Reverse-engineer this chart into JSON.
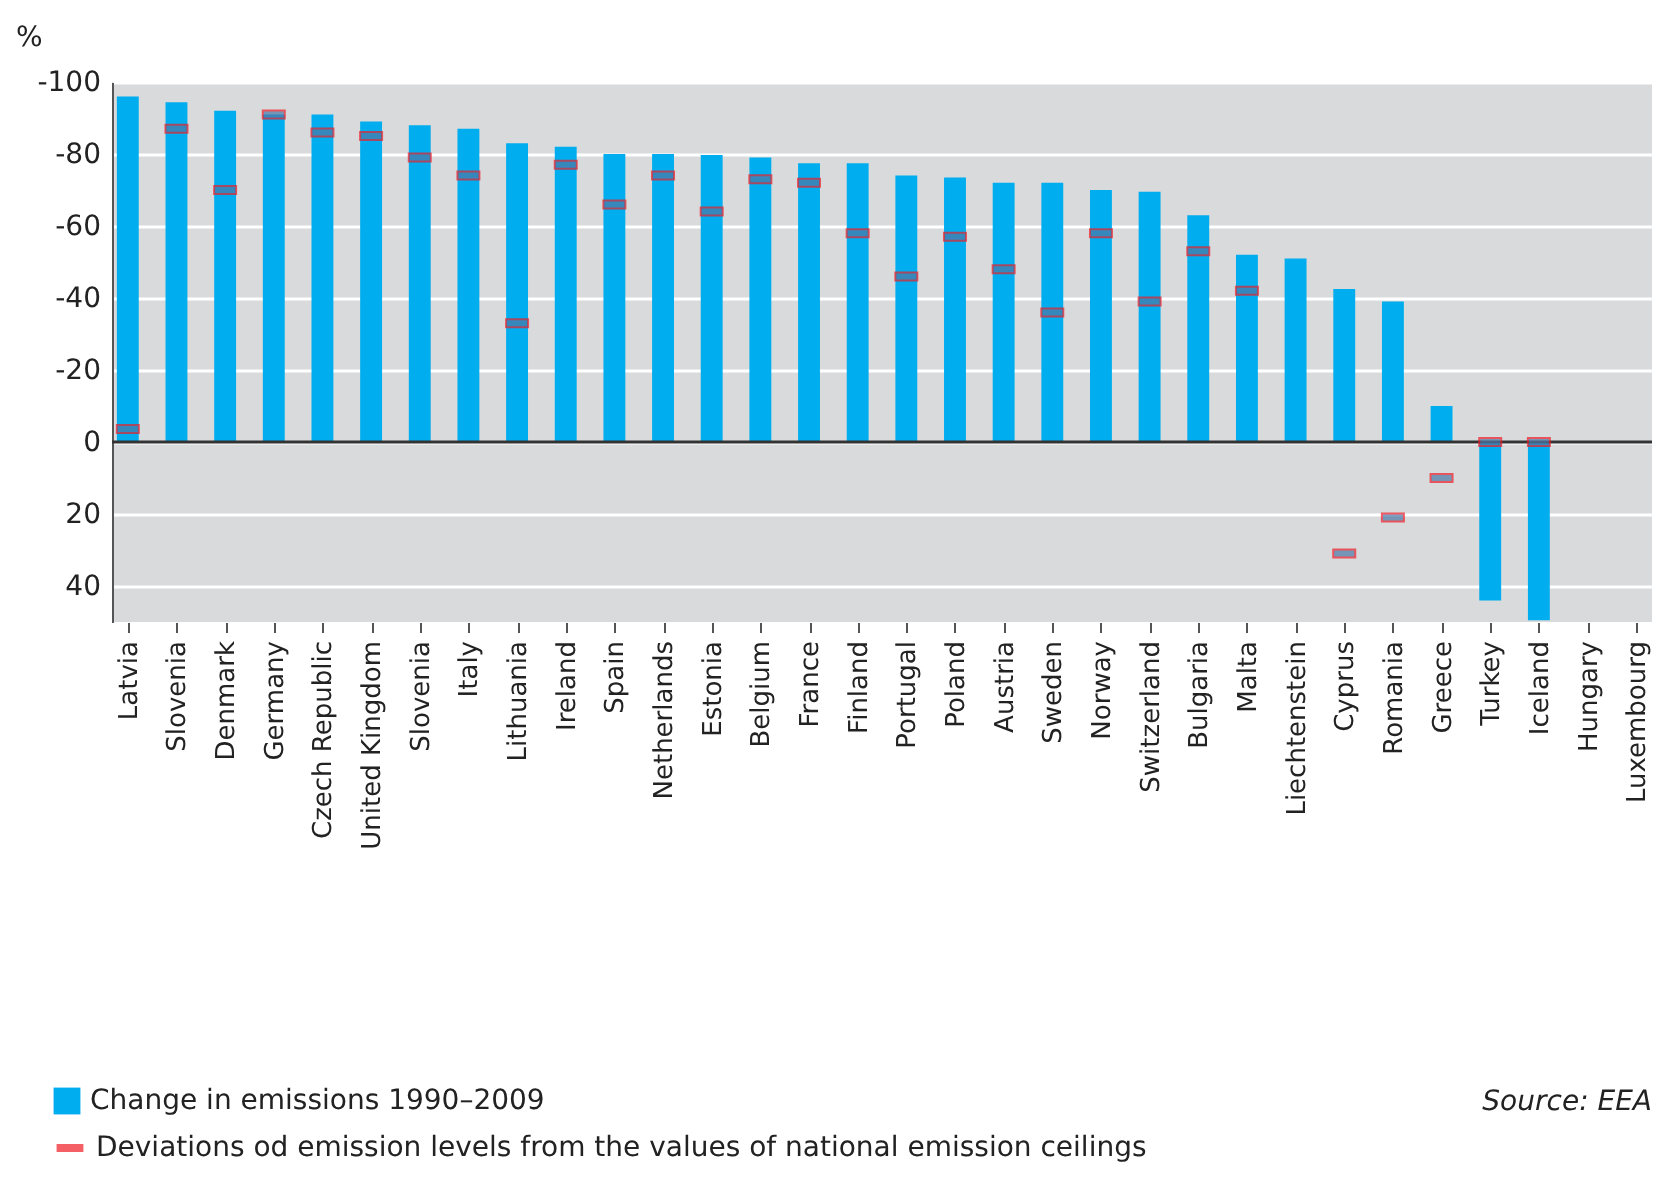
{
  "chart_data": {
    "type": "bar",
    "ylabel": "%",
    "categories": [
      "Latvia",
      "Slovenia",
      "Denmark",
      "Germany",
      "Czech Republic",
      "United Kingdom",
      "Slovenia",
      "Italy",
      "Lithuania",
      "Ireland",
      "Spain",
      "Netherlands",
      "Estonia",
      "Belgium",
      "France",
      "Finland",
      "Portugal",
      "Poland",
      "Austria",
      "Sweden",
      "Norway",
      "Switzerland",
      "Bulgaria",
      "Malta",
      "Liechtenstein",
      "Cyprus",
      "Romania",
      "Greece",
      "Turkey",
      "Iceland",
      "Hungary",
      "Luxembourg"
    ],
    "series": [
      {
        "name": "Change in emissions 1990–2009",
        "color": "#00adee",
        "values": [
          -96,
          -94.4,
          -92,
          -91,
          -91,
          -89,
          -88,
          -87,
          -83,
          -82,
          -80,
          -80,
          -79.7,
          -79,
          -77.4,
          -77.4,
          -74,
          -73.5,
          -72,
          -72,
          -70,
          -69.5,
          -63,
          -52,
          -51,
          -42.5,
          -39,
          -10,
          44,
          49.5,
          null,
          null
        ]
      },
      {
        "name": "Deviations od emission levels from the values of national emission ceilings",
        "type": "scatter",
        "color": "#ee1c25",
        "values": [
          -3.6,
          -87,
          -70,
          -91,
          -86,
          -85,
          -79,
          -74,
          -33,
          -77,
          -66,
          -74,
          -64,
          -73,
          -72,
          -58,
          -46,
          -57,
          -48,
          -36,
          -58,
          -39,
          -53,
          -42,
          null,
          31,
          21,
          10,
          0,
          0,
          null,
          null
        ]
      }
    ],
    "ylim": [
      50,
      -100
    ],
    "yticks": [
      -100,
      -80,
      -60,
      -40,
      -20,
      0,
      20,
      40
    ],
    "grid": "y",
    "legend": "bottom left",
    "annotations": [
      "Source: EEA"
    ]
  }
}
